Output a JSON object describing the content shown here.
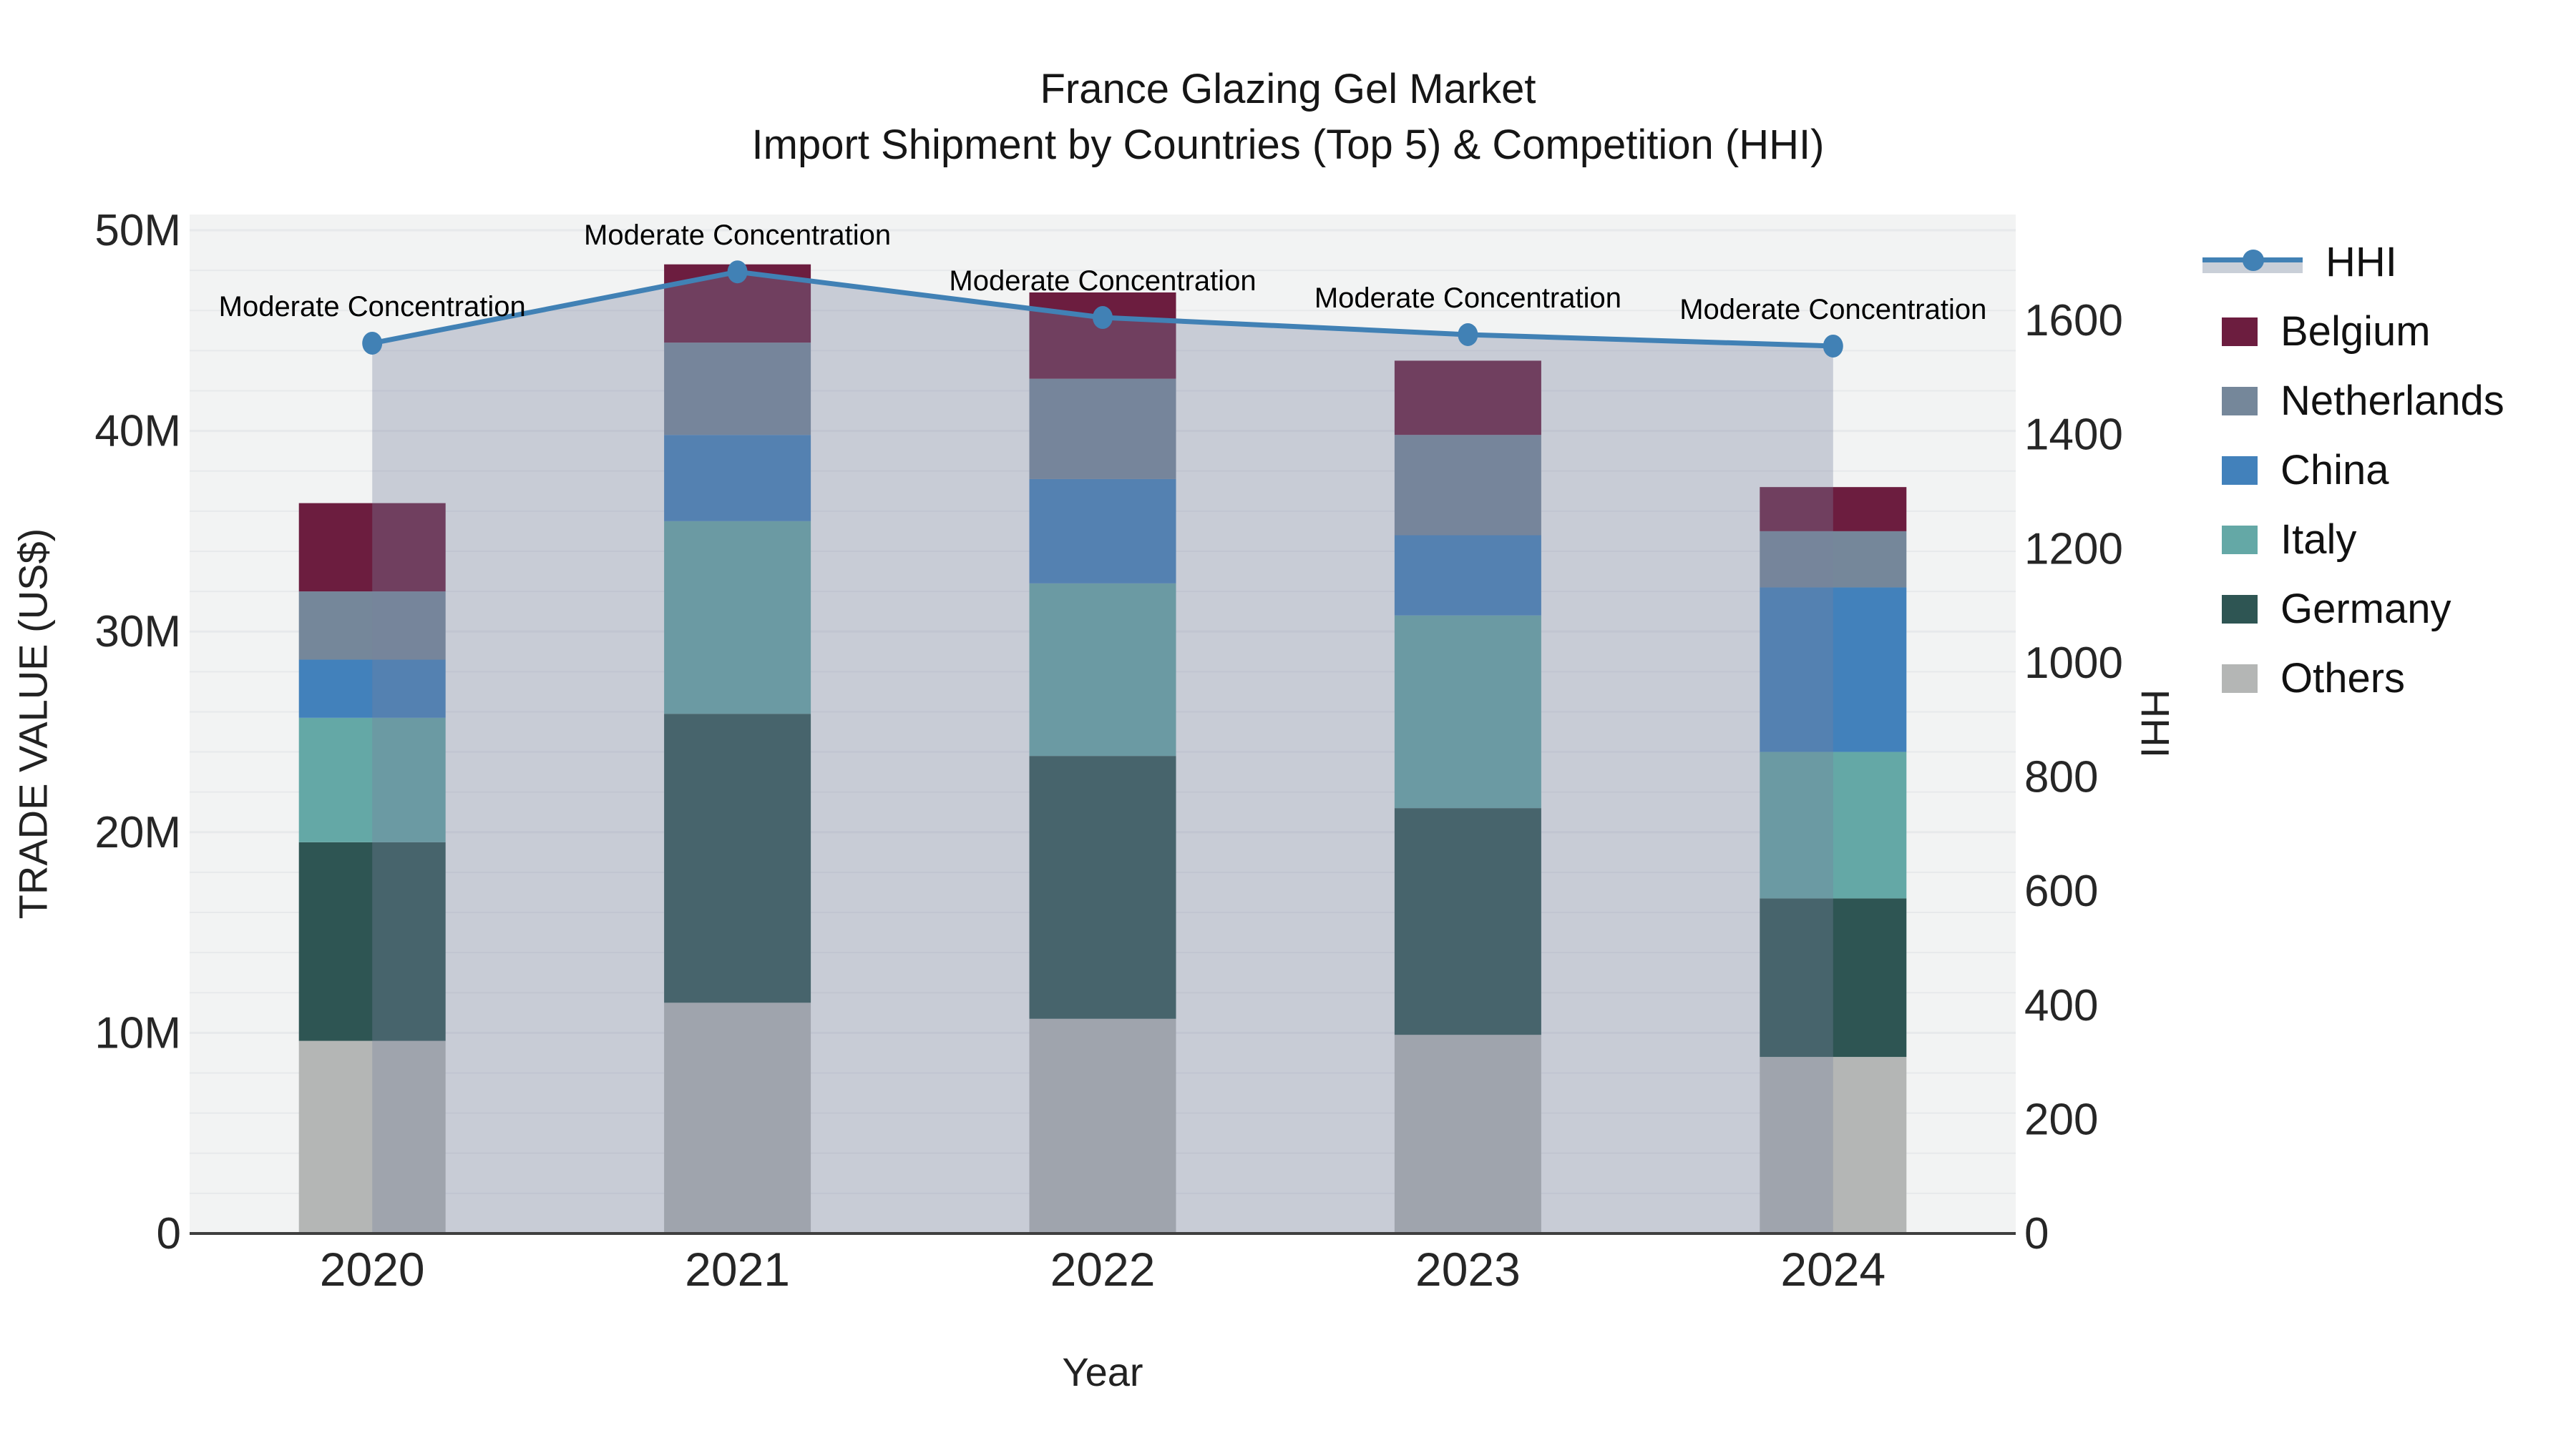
{
  "title": {
    "line1": "France Glazing Gel Market",
    "line2": "Import Shipment by Countries (Top 5) & Competition (HHI)"
  },
  "axes": {
    "x_title": "Year",
    "y_left_title": "TRADE VALUE (US$)",
    "y_right_title": "HHI",
    "y_left_tick_labels": [
      "0",
      "10M",
      "20M",
      "30M",
      "40M",
      "50M"
    ],
    "y_left_tick_values": [
      0,
      10,
      20,
      30,
      40,
      50
    ],
    "y_right_tick_labels": [
      "0",
      "200",
      "400",
      "600",
      "800",
      "1000",
      "1200",
      "1400",
      "1600"
    ],
    "y_right_tick_values": [
      0,
      200,
      400,
      600,
      800,
      1000,
      1200,
      1400,
      1600
    ]
  },
  "legend": {
    "items": [
      {
        "label": "HHI",
        "type": "line",
        "color": "#4181b5",
        "band_color": "#c9cfd8"
      },
      {
        "label": "Belgium",
        "type": "swatch",
        "color": "#6c1d3f"
      },
      {
        "label": "Netherlands",
        "type": "swatch",
        "color": "#75879a"
      },
      {
        "label": "China",
        "type": "swatch",
        "color": "#4281bb"
      },
      {
        "label": "Italy",
        "type": "swatch",
        "color": "#64a8a6"
      },
      {
        "label": "Germany",
        "type": "swatch",
        "color": "#2e5553"
      },
      {
        "label": "Others",
        "type": "swatch",
        "color": "#b4b6b5"
      }
    ]
  },
  "colors": {
    "plot_background": "#f2f3f3",
    "gridline": "#e7e9eb",
    "axis_line": "#3f3f3f",
    "tick_text": "#262626",
    "annotation_text": "#000000",
    "hhi_line": "#4181b5",
    "hhi_area_fill": "rgba(120,130,158,0.34)"
  },
  "chart_data": {
    "type": "combo",
    "subtypes": [
      "stacked-bar",
      "line-area"
    ],
    "title": "France Glazing Gel Market — Import Shipment by Countries (Top 5) & Competition (HHI)",
    "categories": [
      "2020",
      "2021",
      "2022",
      "2023",
      "2024"
    ],
    "xlabel": "Year",
    "ylabel_left": "TRADE VALUE (US$)",
    "ylabel_right": "HHI",
    "y_left_unit": "millions US$",
    "y_left_range": [
      0,
      50.8
    ],
    "y_right_range": [
      0,
      1788
    ],
    "grid": true,
    "legend_position": "right",
    "stack_order_bottom_to_top": [
      "Others",
      "Germany",
      "Italy",
      "China",
      "Netherlands",
      "Belgium"
    ],
    "series": [
      {
        "name": "Others",
        "color": "#b4b6b5",
        "values": [
          9.6,
          11.5,
          10.7,
          9.9,
          8.8
        ]
      },
      {
        "name": "Germany",
        "color": "#2e5553",
        "values": [
          9.9,
          14.4,
          13.1,
          11.3,
          7.9
        ]
      },
      {
        "name": "Italy",
        "color": "#64a8a6",
        "values": [
          6.2,
          9.6,
          8.6,
          9.6,
          7.3
        ]
      },
      {
        "name": "China",
        "color": "#4281bb",
        "values": [
          2.9,
          4.3,
          5.2,
          4.0,
          8.2
        ]
      },
      {
        "name": "Netherlands",
        "color": "#75879a",
        "values": [
          3.4,
          4.6,
          5.0,
          5.0,
          2.8
        ]
      },
      {
        "name": "Belgium",
        "color": "#6c1d3f",
        "values": [
          4.4,
          3.9,
          4.3,
          3.7,
          2.2
        ]
      }
    ],
    "bar_totals_millions": [
      36.4,
      48.3,
      46.9,
      43.5,
      37.2
    ],
    "hhi": {
      "name": "HHI",
      "axis": "right",
      "values": [
        1560,
        1685,
        1605,
        1575,
        1555
      ],
      "annotations": [
        "Moderate Concentration",
        "Moderate Concentration",
        "Moderate Concentration",
        "Moderate Concentration",
        "Moderate Concentration"
      ]
    }
  }
}
